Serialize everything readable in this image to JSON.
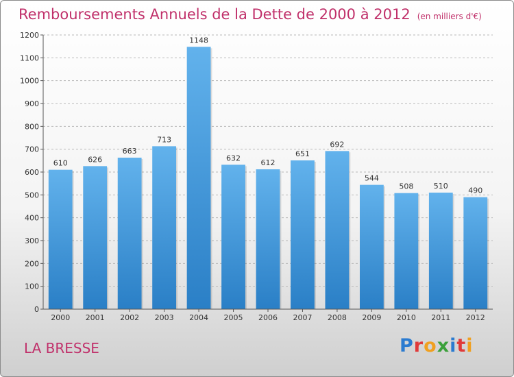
{
  "title": "Remboursements Annuels de la Dette de 2000 à 2012",
  "subtitle": "(en milliers d'€)",
  "place": "LA BRESSE",
  "logo": {
    "letters": [
      "P",
      "r",
      "o",
      "x",
      "i",
      "t",
      "i"
    ],
    "colors": [
      "#2b7bd0",
      "#e03a3a",
      "#f0a020",
      "#3aa03a",
      "#2b7bd0",
      "#e03a3a",
      "#f0a020"
    ]
  },
  "colors": {
    "accent": "#c0306a",
    "bar_top": "#62b2ec",
    "bar_bottom": "#2a7fc6"
  },
  "chart_data": {
    "type": "bar",
    "categories": [
      "2000",
      "2001",
      "2002",
      "2003",
      "2004",
      "2005",
      "2006",
      "2007",
      "2008",
      "2009",
      "2010",
      "2011",
      "2012"
    ],
    "values": [
      610,
      626,
      663,
      713,
      1148,
      632,
      612,
      651,
      692,
      544,
      508,
      510,
      490
    ],
    "ylim": [
      0,
      1200
    ],
    "yticks": [
      0,
      100,
      200,
      300,
      400,
      500,
      600,
      700,
      800,
      900,
      1000,
      1100,
      1200
    ],
    "grid": true
  }
}
